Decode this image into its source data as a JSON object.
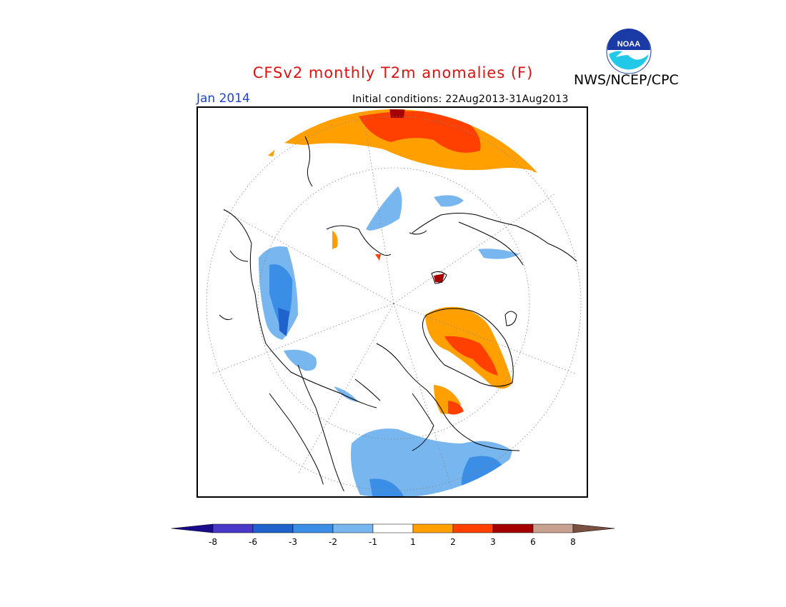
{
  "header": {
    "title": "CFSv2 monthly T2m anomalies (F)",
    "agency": "NWS/NCEP/CPC",
    "valid_month": "Jan 2014",
    "initial_conditions": "Initial conditions: 22Aug2013-31Aug2013"
  },
  "colors": {
    "title": "#dd1111",
    "valid_month": "#2244cc"
  },
  "logo": {
    "icon": "noaa-logo-icon",
    "text": "NOAA"
  },
  "map": {
    "projection": "north-polar-stereographic",
    "coastlines": true,
    "lat_lon_grid": "dotted"
  },
  "legend": {
    "labels": [
      "-8",
      "-6",
      "-3",
      "-2",
      "-1",
      "1",
      "2",
      "3",
      "6",
      "8"
    ],
    "colors": [
      "#1a0a8c",
      "#4a38c8",
      "#1f62cc",
      "#3a8ee6",
      "#78b6f0",
      "#ffffff",
      "#ffa000",
      "#ff4000",
      "#a50000",
      "#c8a090",
      "#7a5040"
    ]
  }
}
